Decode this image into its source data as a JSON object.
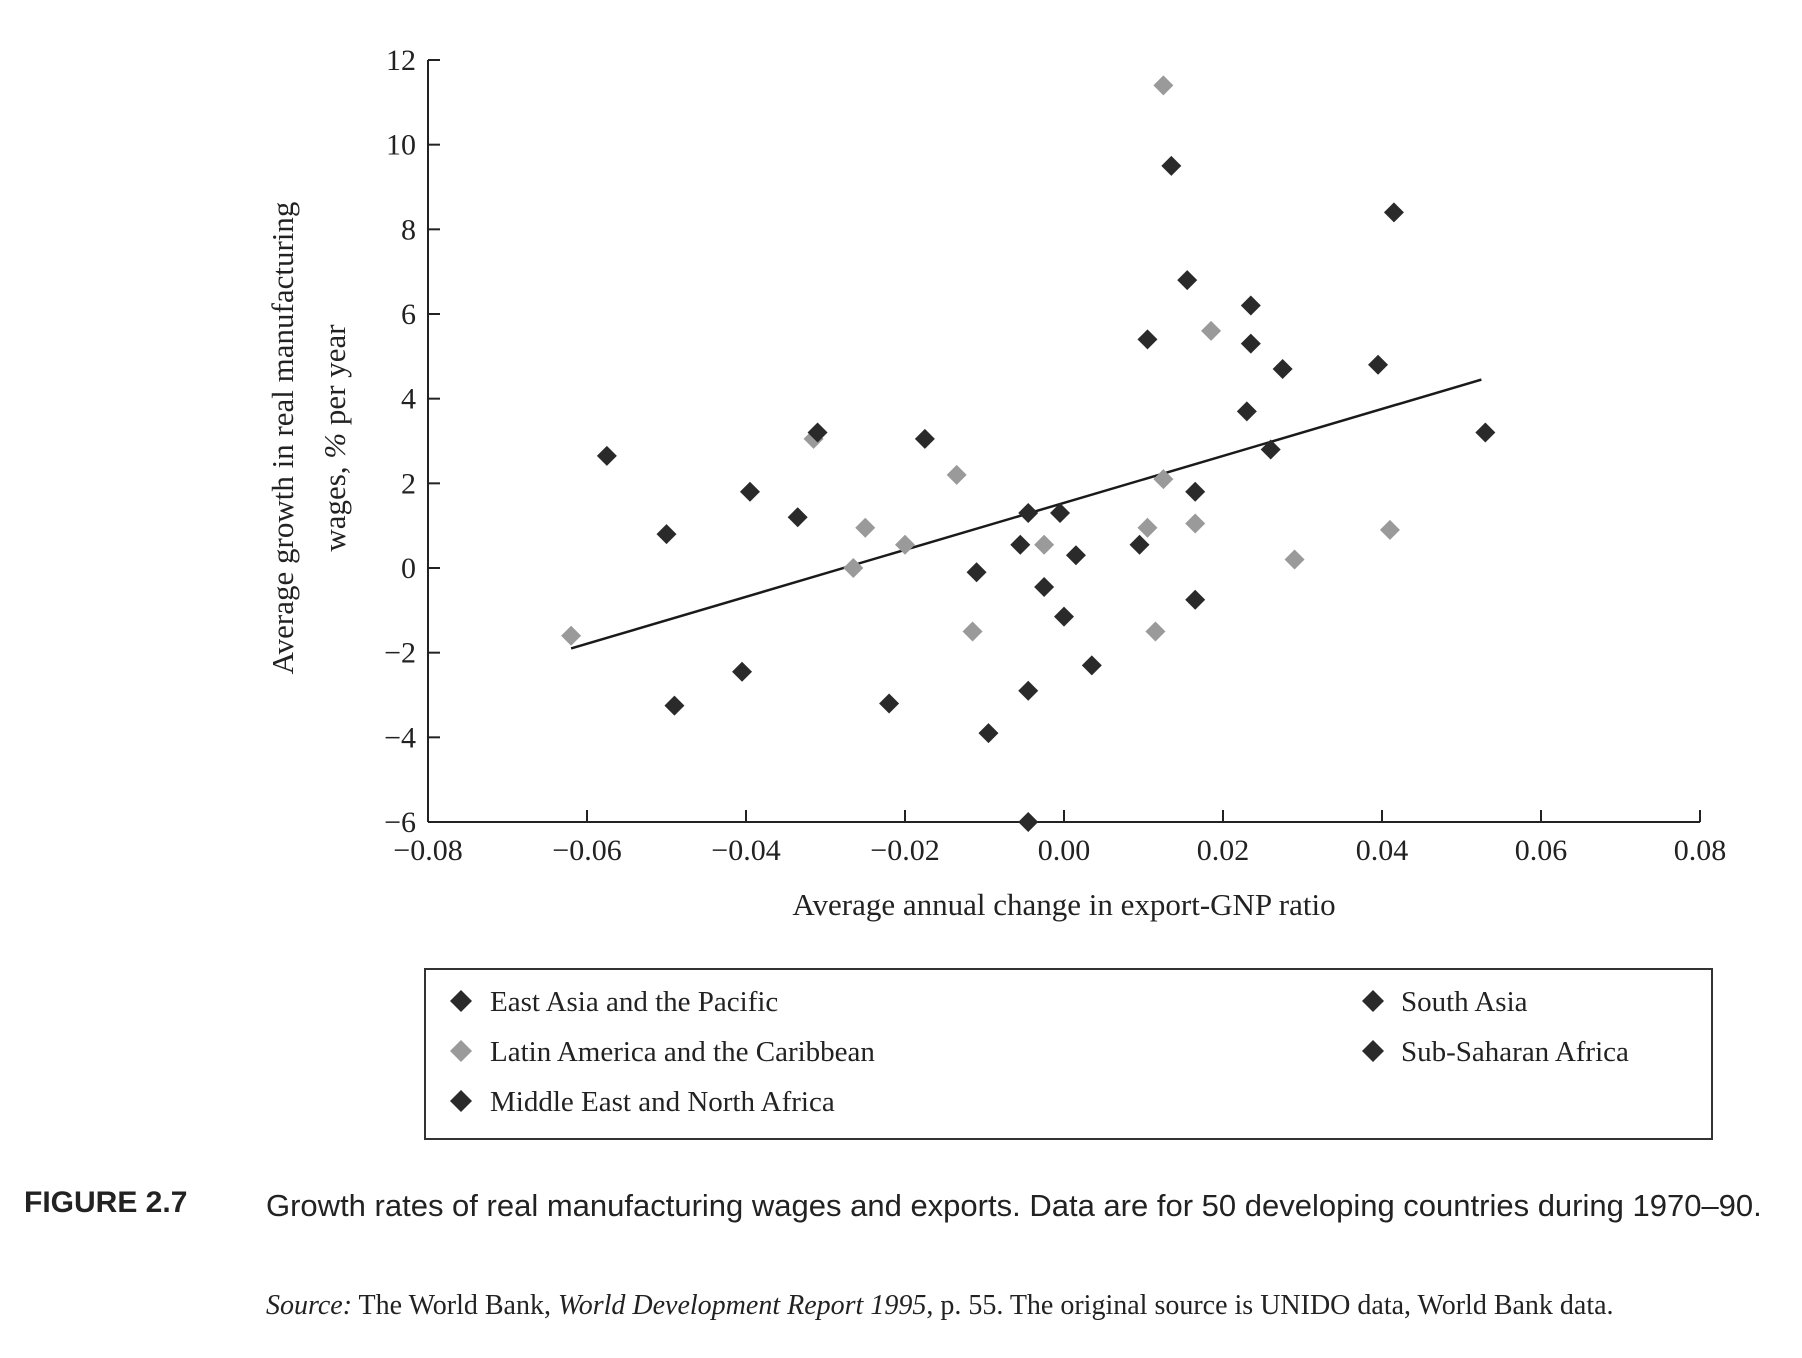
{
  "chart_data": {
    "type": "scatter",
    "xlabel": "Average annual change in export-GNP ratio",
    "ylabel_line1": "Average growth in real manufacturing",
    "ylabel_line2_prefix": "wages, ",
    "ylabel_line2_pct": "%",
    "ylabel_line2_suffix": " per year",
    "xlim": [
      -0.08,
      0.08
    ],
    "ylim": [
      -6,
      12
    ],
    "x_ticks": [
      -0.08,
      -0.06,
      -0.04,
      -0.02,
      0.0,
      0.02,
      0.04,
      0.06,
      0.08
    ],
    "x_tick_labels": [
      "−0.08",
      "−0.06",
      "−0.04",
      "−0.02",
      "0.00",
      "0.02",
      "0.04",
      "0.06",
      "0.08"
    ],
    "y_ticks": [
      12,
      10,
      8,
      6,
      4,
      2,
      0,
      -2,
      -4,
      -6
    ],
    "y_tick_labels": [
      "12",
      "10",
      "8",
      "6",
      "4",
      "2",
      "0",
      "−2",
      "−4",
      "−6"
    ],
    "grid": false,
    "legend_placement": "bottom, below chart",
    "series": [
      {
        "name": "East Asia and the Pacific",
        "color": "#2a2a2a",
        "marker": "diamond",
        "points": [
          [
            0.0135,
            9.5
          ],
          [
            0.0155,
            6.8
          ],
          [
            0.0235,
            6.2
          ],
          [
            0.0105,
            5.4
          ],
          [
            0.0235,
            5.3
          ],
          [
            0.0275,
            4.7
          ],
          [
            0.0395,
            4.8
          ],
          [
            0.0415,
            8.4
          ],
          [
            0.053,
            3.2
          ],
          [
            0.023,
            3.7
          ],
          [
            0.026,
            2.8
          ],
          [
            0.0165,
            1.8
          ]
        ]
      },
      {
        "name": "Latin America and the Caribbean",
        "color": "#9a9a9a",
        "marker": "diamond",
        "points": [
          [
            0.0125,
            11.4
          ],
          [
            0.0185,
            5.6
          ],
          [
            0.0125,
            2.1
          ],
          [
            0.0105,
            0.95
          ],
          [
            0.0165,
            1.05
          ],
          [
            0.0115,
            -1.5
          ],
          [
            0.029,
            0.2
          ],
          [
            0.041,
            0.9
          ],
          [
            -0.0315,
            3.05
          ],
          [
            -0.0135,
            2.2
          ],
          [
            -0.025,
            0.95
          ],
          [
            -0.02,
            0.55
          ],
          [
            -0.0265,
            0.0
          ],
          [
            -0.0115,
            -1.5
          ],
          [
            -0.0025,
            0.55
          ],
          [
            -0.062,
            -1.6
          ]
        ]
      },
      {
        "name": "Middle East and North Africa",
        "color": "#2a2a2a",
        "marker": "diamond",
        "points": [
          [
            -0.0575,
            2.65
          ],
          [
            -0.05,
            0.8
          ],
          [
            -0.049,
            -3.25
          ],
          [
            -0.0395,
            1.8
          ],
          [
            -0.0405,
            -2.45
          ],
          [
            -0.0335,
            1.2
          ]
        ]
      },
      {
        "name": "South Asia",
        "color": "#2a2a2a",
        "marker": "diamond",
        "points": [
          [
            -0.031,
            3.2
          ],
          [
            -0.0175,
            3.05
          ],
          [
            -0.022,
            -3.2
          ],
          [
            -0.011,
            -0.1
          ],
          [
            -0.0095,
            -3.9
          ]
        ]
      },
      {
        "name": "Sub-Saharan Africa",
        "color": "#2a2a2a",
        "marker": "diamond",
        "points": [
          [
            -0.0045,
            1.3
          ],
          [
            -0.0005,
            1.3
          ],
          [
            -0.0055,
            0.55
          ],
          [
            0.0015,
            0.3
          ],
          [
            -0.0025,
            -0.45
          ],
          [
            0.0,
            -1.15
          ],
          [
            -0.0045,
            -2.9
          ],
          [
            0.0035,
            -2.3
          ],
          [
            -0.0045,
            -6.0
          ],
          [
            0.0095,
            0.55
          ],
          [
            0.0165,
            -0.75
          ]
        ]
      }
    ],
    "trendline": {
      "x": [
        -0.062,
        0.0525
      ],
      "y": [
        -1.9,
        4.45
      ],
      "color": "#1a1a1a"
    }
  },
  "legend": {
    "items": [
      {
        "label": "East Asia and the Pacific",
        "color": "#2a2a2a"
      },
      {
        "label": "Latin America and the Caribbean",
        "color": "#9a9a9a"
      },
      {
        "label": "Middle East and North Africa",
        "color": "#2a2a2a"
      },
      {
        "label": "South Asia",
        "color": "#2a2a2a"
      },
      {
        "label": "Sub-Saharan Africa",
        "color": "#2a2a2a"
      }
    ]
  },
  "caption": {
    "figure_number": "FIGURE 2.7",
    "text": "Growth rates of real manufacturing wages and exports. Data are for 50 developing countries during 1970–90.",
    "source_label": "Source:",
    "source_text_1": " The World Bank, ",
    "source_title": "World Development Report 1995",
    "source_text_2": ", p. 55. The original source is UNIDO data, World Bank data."
  }
}
